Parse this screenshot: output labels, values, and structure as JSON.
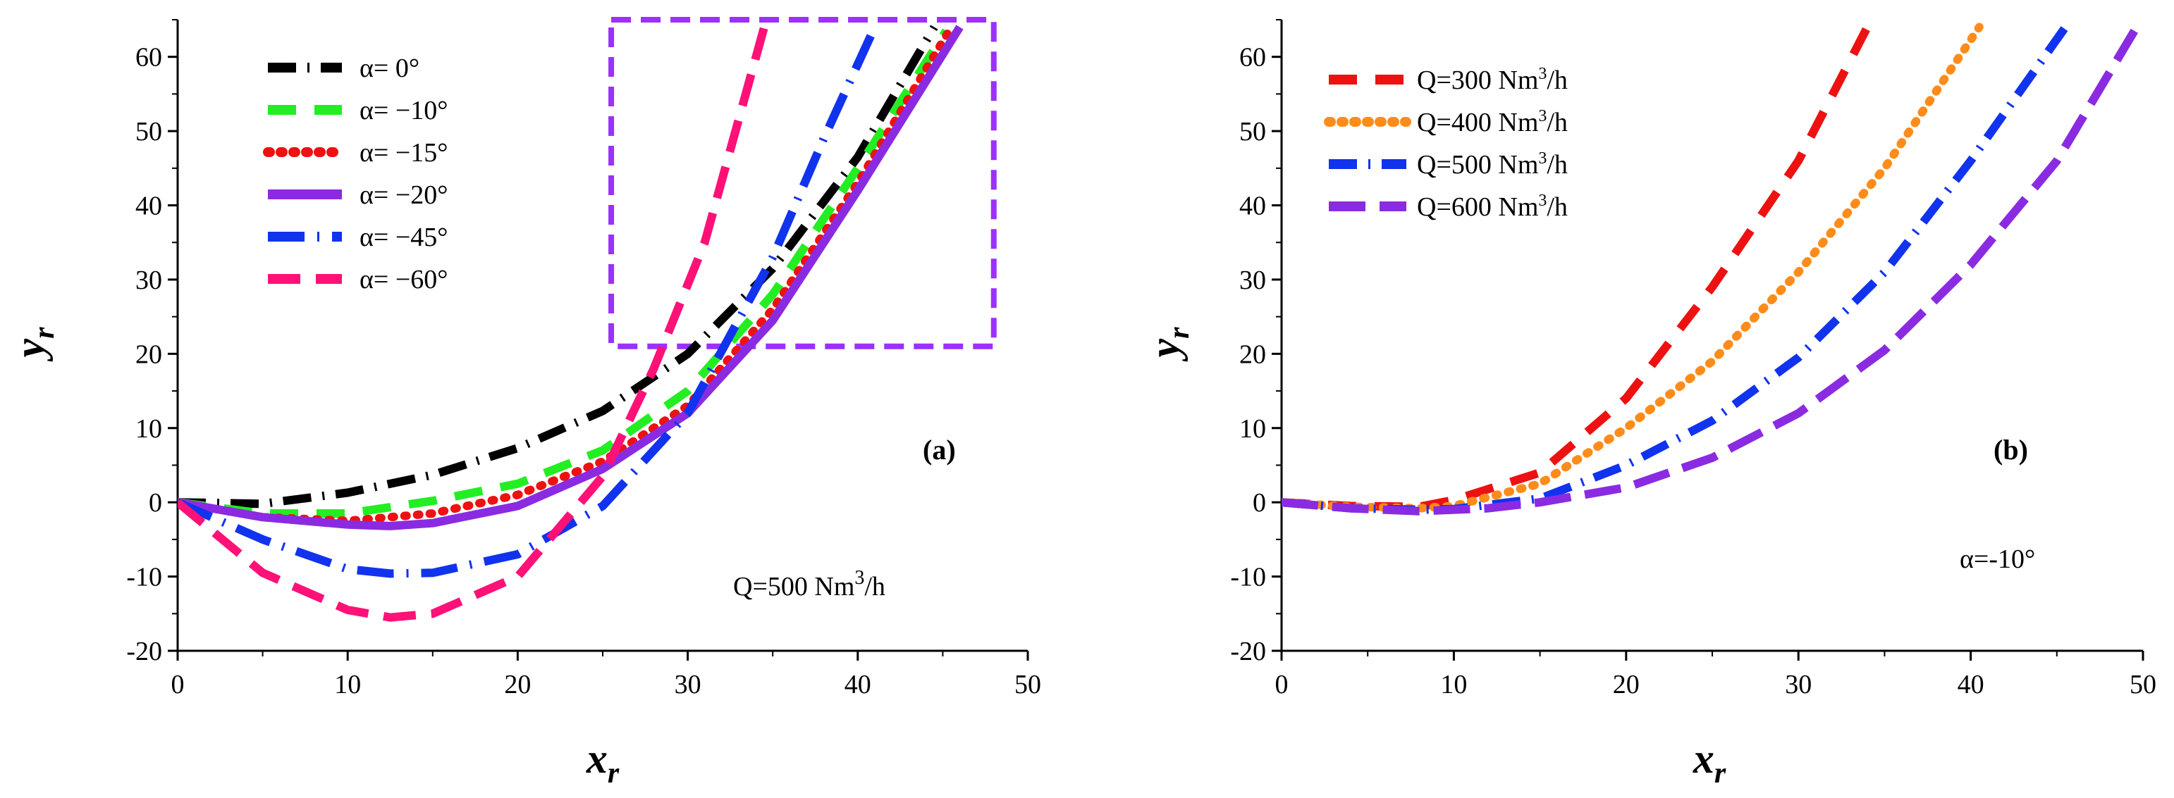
{
  "chart_data": [
    {
      "type": "line",
      "panel_label": "(a)",
      "xlabel": "x",
      "xlabel_sub": "r",
      "ylabel": "y",
      "ylabel_sub": "r",
      "xlim": [
        0,
        50
      ],
      "ylim": [
        -20,
        65
      ],
      "xticks": [
        0,
        10,
        20,
        30,
        40,
        50
      ],
      "yticks": [
        -20,
        -10,
        0,
        10,
        20,
        30,
        40,
        50,
        60
      ],
      "annotation": "Q=500 Nm",
      "annotation_sup": "3",
      "annotation_tail": "/h",
      "legend_position": "top-left",
      "zoom_box": {
        "x_range": [
          25.5,
          48
        ],
        "y_range": [
          21,
          65
        ],
        "color": "#9B30FF"
      },
      "series": [
        {
          "name": "α= 0°",
          "color": "#000000",
          "dash": "dashdot",
          "x": [
            0,
            5,
            10,
            15,
            20,
            25,
            30,
            35,
            40,
            44.5
          ],
          "y": [
            0,
            -0.2,
            1.3,
            3.7,
            7.3,
            12.3,
            20,
            31.5,
            46.5,
            64
          ]
        },
        {
          "name": "α= −10°",
          "color": "#22EE22",
          "dash": "dash-wide",
          "x": [
            0,
            5,
            10,
            15,
            20,
            25,
            30,
            35,
            40,
            45.2
          ],
          "y": [
            0,
            -1.5,
            -1.5,
            0.2,
            2.5,
            7,
            15,
            28,
            45,
            63.5
          ]
        },
        {
          "name": "α= −15°",
          "color": "#EE1111",
          "dash": "dot",
          "x": [
            0,
            5,
            10,
            15,
            20,
            25,
            30,
            35,
            40,
            45.5
          ],
          "y": [
            0,
            -2,
            -2.5,
            -1.5,
            1,
            5.5,
            13,
            26,
            43,
            64
          ]
        },
        {
          "name": "α= −20°",
          "color": "#8A2BE2",
          "dash": "solid",
          "x": [
            0,
            5,
            10,
            12.5,
            15,
            20,
            25,
            30,
            35,
            40,
            46
          ],
          "y": [
            0,
            -2,
            -3,
            -3.2,
            -2.8,
            -0.5,
            4.5,
            12,
            24.5,
            42,
            64
          ]
        },
        {
          "name": "α= −45°",
          "color": "#1133EE",
          "dash": "dashdot-long",
          "x": [
            0,
            5,
            10,
            12.5,
            15,
            20,
            25,
            30,
            35,
            38,
            41
          ],
          "y": [
            0,
            -5,
            -9,
            -9.6,
            -9.5,
            -7,
            -0.5,
            12,
            33,
            49,
            64
          ]
        },
        {
          "name": "α= −60°",
          "color": "#FF1177",
          "dash": "dash",
          "x": [
            0,
            5,
            10,
            12.5,
            15,
            20,
            25,
            28,
            31,
            34.5
          ],
          "y": [
            0,
            -9.5,
            -14.5,
            -15.5,
            -15,
            -10,
            3.5,
            18,
            35,
            64
          ]
        }
      ]
    },
    {
      "type": "line",
      "panel_label": "(b)",
      "xlabel": "x",
      "xlabel_sub": "r",
      "ylabel": "y",
      "ylabel_sub": "r",
      "xlim": [
        0,
        50
      ],
      "ylim": [
        -20,
        65
      ],
      "xticks": [
        0,
        10,
        20,
        30,
        40,
        50
      ],
      "yticks": [
        -20,
        -10,
        0,
        10,
        20,
        30,
        40,
        50,
        60
      ],
      "annotation": "α=-10°",
      "legend_position": "top-left",
      "series": [
        {
          "name": "Q=300 Nm",
          "name_sup": "3",
          "name_tail": "/h",
          "color": "#EE1111",
          "dash": "dash-wide",
          "x": [
            0,
            4,
            8,
            10,
            15,
            20,
            25,
            30,
            34
          ],
          "y": [
            0,
            -0.5,
            -0.6,
            0.3,
            4,
            14,
            29,
            46,
            64
          ]
        },
        {
          "name": "Q=400 Nm",
          "name_sup": "3",
          "name_tail": "/h",
          "color": "#FF8C1A",
          "dash": "dot",
          "x": [
            0,
            4,
            8,
            10,
            15,
            20,
            25,
            30,
            35,
            40.5
          ],
          "y": [
            0,
            -0.6,
            -0.8,
            -0.5,
            2.5,
            10,
            19,
            31,
            45,
            64
          ]
        },
        {
          "name": "Q=500 Nm",
          "name_sup": "3",
          "name_tail": "/h",
          "color": "#1133EE",
          "dash": "dashdot",
          "x": [
            0,
            4,
            8,
            10,
            15,
            20,
            25,
            30,
            35,
            40,
            45.5
          ],
          "y": [
            0,
            -0.8,
            -1,
            -0.9,
            0.5,
            5,
            11,
            19.5,
            31,
            46,
            64
          ]
        },
        {
          "name": "Q=600 Nm",
          "name_sup": "3",
          "name_tail": "/h",
          "color": "#8A2BE2",
          "dash": "dash-long",
          "x": [
            0,
            4,
            8,
            12,
            15,
            20,
            25,
            30,
            35,
            40,
            45,
            49.5
          ],
          "y": [
            0,
            -0.8,
            -1.2,
            -0.8,
            0,
            2,
            6,
            12,
            20.5,
            32,
            46,
            63.5
          ]
        }
      ]
    }
  ]
}
